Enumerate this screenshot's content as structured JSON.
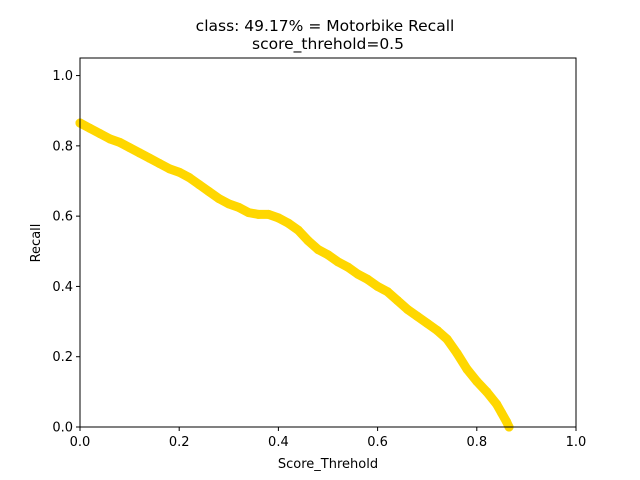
{
  "chart_data": {
    "type": "line",
    "title_line1": "class: 49.17% = Motorbike Recall",
    "title_line2": "score_threhold=0.5",
    "xlabel": "Score_Threhold",
    "ylabel": "Recall",
    "xlim": [
      0.0,
      1.0
    ],
    "ylim": [
      0.0,
      1.05
    ],
    "x_ticks": [
      "0.0",
      "0.2",
      "0.4",
      "0.6",
      "0.8",
      "1.0"
    ],
    "y_ticks": [
      "0.0",
      "0.2",
      "0.4",
      "0.6",
      "0.8",
      "1.0"
    ],
    "grid": false,
    "series": [
      {
        "color": "#FFD700",
        "x": [
          0.0,
          0.02,
          0.04,
          0.06,
          0.08,
          0.1,
          0.12,
          0.14,
          0.16,
          0.18,
          0.2,
          0.22,
          0.24,
          0.26,
          0.28,
          0.3,
          0.32,
          0.34,
          0.36,
          0.38,
          0.4,
          0.42,
          0.44,
          0.46,
          0.48,
          0.5,
          0.52,
          0.54,
          0.56,
          0.58,
          0.6,
          0.62,
          0.64,
          0.66,
          0.68,
          0.7,
          0.72,
          0.74,
          0.76,
          0.78,
          0.8,
          0.82,
          0.84,
          0.85,
          0.86,
          0.865
        ],
        "y": [
          0.865,
          0.85,
          0.835,
          0.82,
          0.81,
          0.795,
          0.78,
          0.765,
          0.75,
          0.735,
          0.725,
          0.71,
          0.69,
          0.67,
          0.65,
          0.635,
          0.625,
          0.61,
          0.605,
          0.605,
          0.595,
          0.58,
          0.56,
          0.53,
          0.505,
          0.49,
          0.47,
          0.455,
          0.435,
          0.42,
          0.4,
          0.385,
          0.36,
          0.335,
          0.315,
          0.295,
          0.275,
          0.25,
          0.21,
          0.165,
          0.13,
          0.1,
          0.065,
          0.04,
          0.015,
          0.0
        ]
      }
    ]
  }
}
